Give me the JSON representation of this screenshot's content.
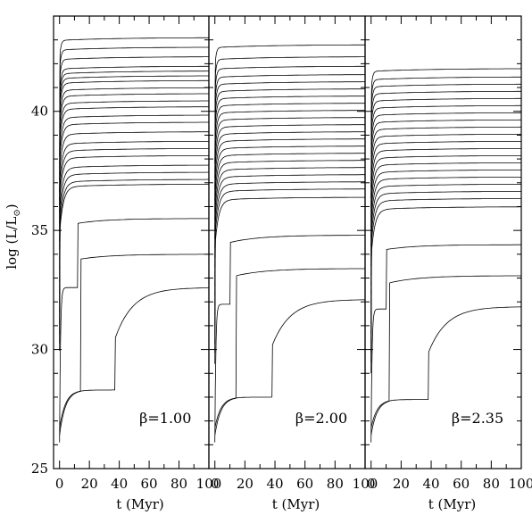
{
  "chart_data": {
    "type": "line",
    "ylabel": "log (L/L",
    "ylabel_sub": "⊙",
    "ylabel_close": ")",
    "xlabel": "t (Myr)",
    "ylim": [
      25,
      44
    ],
    "xlim": [
      -4,
      100
    ],
    "yticks_major": [
      25,
      30,
      35,
      40
    ],
    "ytick_labels": [
      "25",
      "30",
      "35",
      "40"
    ],
    "xticks_major": [
      0,
      20,
      40,
      60,
      80,
      100
    ],
    "xtick_labels": [
      "0",
      "20",
      "40",
      "60",
      "80",
      "100"
    ],
    "grid": false,
    "panels": [
      {
        "label": "β=1.00",
        "plateaus": [
          43.1,
          42.7,
          42.3,
          41.9,
          41.7,
          41.5,
          41.3,
          41.0,
          40.75,
          40.45,
          40.2,
          39.85,
          39.55,
          39.15,
          38.75,
          38.45,
          38.15,
          37.75,
          37.45,
          37.15,
          36.95
        ],
        "special_curves": [
          {
            "rise_time": 12,
            "start_y": 32.6,
            "step_y": 35.3,
            "final_y": 35.5
          },
          {
            "rise_time": 14,
            "start_y": 28.3,
            "step_y": 33.8,
            "final_y": 34.0
          },
          {
            "rise_time": 37,
            "start_y": 28.3,
            "step_y": 30.5,
            "final_y": 32.6
          }
        ]
      },
      {
        "label": "β=2.00",
        "plateaus": [
          42.8,
          42.3,
          41.9,
          41.55,
          41.25,
          40.95,
          40.65,
          40.35,
          40.05,
          39.75,
          39.45,
          39.15,
          38.85,
          38.55,
          38.25,
          37.95,
          37.65,
          37.35,
          37.05,
          36.75,
          36.4
        ],
        "special_curves": [
          {
            "rise_time": 10,
            "start_y": 31.9,
            "step_y": 34.5,
            "final_y": 34.8
          },
          {
            "rise_time": 14,
            "start_y": 28.0,
            "step_y": 33.1,
            "final_y": 33.4
          },
          {
            "rise_time": 38,
            "start_y": 28.0,
            "step_y": 30.2,
            "final_y": 32.1
          }
        ]
      },
      {
        "label": "β=2.35",
        "plateaus": [
          41.8,
          41.45,
          41.15,
          40.85,
          40.55,
          40.25,
          39.95,
          39.65,
          39.35,
          39.05,
          38.75,
          38.45,
          38.15,
          37.85,
          37.55,
          37.25,
          36.95,
          36.65,
          36.35,
          36.0
        ],
        "special_curves": [
          {
            "rise_time": 10,
            "start_y": 31.7,
            "step_y": 34.2,
            "final_y": 34.4
          },
          {
            "rise_time": 12,
            "start_y": 27.9,
            "step_y": 32.8,
            "final_y": 33.1
          },
          {
            "rise_time": 38,
            "start_y": 27.9,
            "step_y": 29.9,
            "final_y": 31.8
          }
        ]
      }
    ]
  }
}
